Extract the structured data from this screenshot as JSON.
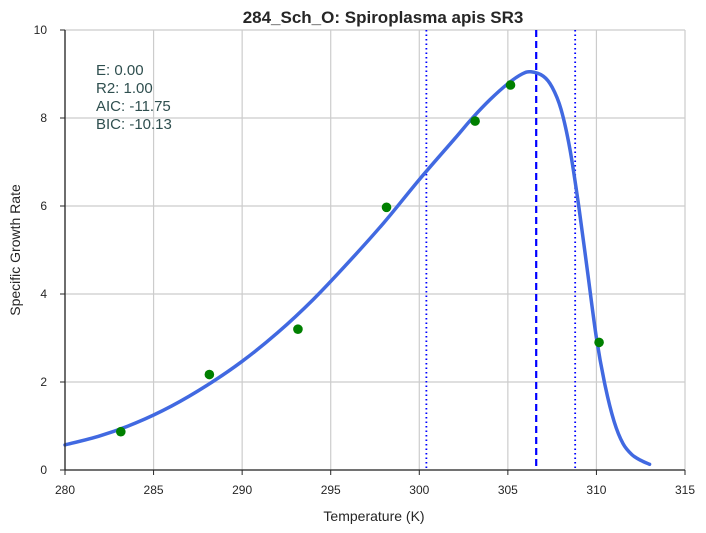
{
  "chart_data": {
    "type": "scatter",
    "title": "284_Sch_O: Spiroplasma apis SR3",
    "xlabel": "Temperature (K)",
    "ylabel": "Specific Growth Rate",
    "xlim": [
      280,
      315
    ],
    "ylim": [
      0,
      10
    ],
    "xticks": [
      280,
      285,
      290,
      295,
      300,
      305,
      310,
      315
    ],
    "yticks": [
      0,
      2,
      4,
      6,
      8,
      10
    ],
    "grid": true,
    "points": {
      "color": "#008000",
      "x": [
        283.15,
        288.15,
        293.15,
        298.15,
        303.15,
        305.15,
        310.15
      ],
      "y": [
        0.87,
        2.17,
        3.2,
        5.97,
        7.93,
        8.75,
        2.9
      ]
    },
    "fit_curve": {
      "color": "#4169e1",
      "x": [
        280,
        282,
        284,
        286,
        288,
        290,
        292,
        294,
        296,
        298,
        300,
        302,
        303,
        304,
        305,
        305.8,
        306.3,
        307,
        307.5,
        308,
        308.5,
        309,
        309.5,
        310,
        310.5,
        311,
        311.5,
        312,
        312.5,
        313
      ],
      "y": [
        0.57,
        0.78,
        1.07,
        1.45,
        1.92,
        2.47,
        3.12,
        3.87,
        4.72,
        5.62,
        6.6,
        7.53,
        8.0,
        8.42,
        8.78,
        9.0,
        9.05,
        8.95,
        8.7,
        8.2,
        7.3,
        6.0,
        4.5,
        3.0,
        1.9,
        1.1,
        0.6,
        0.35,
        0.22,
        0.13
      ]
    },
    "vlines": [
      {
        "x": 300.4,
        "style": "dotted",
        "color": "#0000ff"
      },
      {
        "x": 306.6,
        "style": "dashed",
        "color": "#0000ff"
      },
      {
        "x": 308.8,
        "style": "dotted",
        "color": "#0000ff"
      }
    ],
    "annotations": [
      "E:  0.00",
      "R2:  1.00",
      "AIC: -11.75",
      "BIC: -10.13"
    ]
  }
}
